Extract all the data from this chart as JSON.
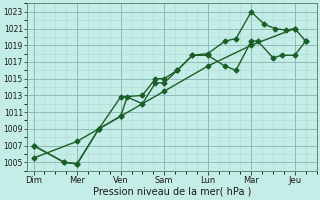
{
  "xlabel": "Pression niveau de la mer( hPa )",
  "bg_color": "#c5ede7",
  "grid_color_minor": "#b0d8d2",
  "grid_color_major": "#90bcb5",
  "line_color": "#1a5e28",
  "ylim": [
    1004.0,
    1024.0
  ],
  "yticks": [
    1005,
    1007,
    1009,
    1011,
    1013,
    1015,
    1017,
    1019,
    1021,
    1023
  ],
  "x_labels": [
    "Dim",
    "Mer",
    "Ven",
    "Sam",
    "Lun",
    "Mar",
    "Jeu"
  ],
  "x_major": [
    0,
    1,
    2,
    3,
    4,
    5,
    6
  ],
  "xlim": [
    -0.15,
    6.5
  ],
  "line1_x": [
    0,
    0.7,
    1.0,
    1.5,
    2.0,
    2.15,
    2.5,
    2.8,
    3.0,
    3.3,
    3.65,
    4.0,
    4.4,
    4.65,
    5.0,
    5.15,
    5.5,
    5.7,
    6.0,
    6.25
  ],
  "line1_y": [
    1007,
    1005,
    1004.8,
    1009,
    1010.5,
    1012.8,
    1012,
    1014.5,
    1014.5,
    1016,
    1017.8,
    1017.8,
    1016.5,
    1016,
    1019.5,
    1019.5,
    1017.5,
    1017.8,
    1017.8,
    1019.5
  ],
  "line2_x": [
    0,
    0.7,
    1.0,
    1.5,
    2.0,
    2.5,
    2.8,
    3.0,
    3.3,
    3.65,
    4.0,
    4.4,
    4.65,
    5.0,
    5.3,
    5.55,
    5.8,
    6.0,
    6.25
  ],
  "line2_y": [
    1007,
    1005,
    1004.8,
    1009,
    1012.8,
    1013,
    1015,
    1015,
    1016,
    1017.8,
    1018,
    1019.5,
    1019.8,
    1023,
    1021.5,
    1021.0,
    1020.8,
    1021,
    1019.5
  ],
  "line3_x": [
    0,
    1,
    2,
    3,
    4,
    5,
    6
  ],
  "line3_y": [
    1005.5,
    1007.5,
    1010.5,
    1013.5,
    1016.5,
    1019.0,
    1021.0
  ],
  "marker": "D",
  "marker_size": 2.5,
  "line_width": 1.0
}
